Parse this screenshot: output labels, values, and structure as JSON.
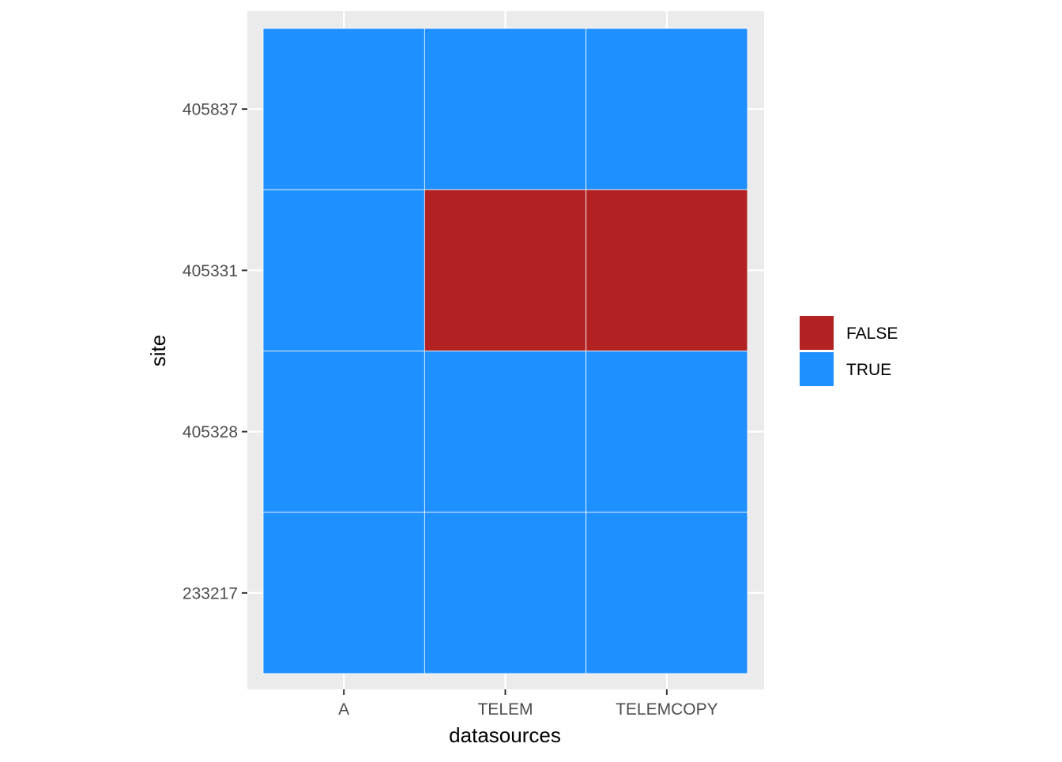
{
  "chart_data": {
    "type": "heatmap",
    "title": "",
    "xlabel": "datasources",
    "ylabel": "site",
    "x_categories": [
      "A",
      "TELEM",
      "TELEMCOPY"
    ],
    "y_categories": [
      "233217",
      "405328",
      "405331",
      "405837"
    ],
    "cells": [
      {
        "x": "A",
        "y": "405837",
        "value": "TRUE"
      },
      {
        "x": "TELEM",
        "y": "405837",
        "value": "TRUE"
      },
      {
        "x": "TELEMCOPY",
        "y": "405837",
        "value": "TRUE"
      },
      {
        "x": "A",
        "y": "405331",
        "value": "TRUE"
      },
      {
        "x": "TELEM",
        "y": "405331",
        "value": "FALSE"
      },
      {
        "x": "TELEMCOPY",
        "y": "405331",
        "value": "FALSE"
      },
      {
        "x": "A",
        "y": "405328",
        "value": "TRUE"
      },
      {
        "x": "TELEM",
        "y": "405328",
        "value": "TRUE"
      },
      {
        "x": "TELEMCOPY",
        "y": "405328",
        "value": "TRUE"
      },
      {
        "x": "A",
        "y": "233217",
        "value": "TRUE"
      },
      {
        "x": "TELEM",
        "y": "233217",
        "value": "TRUE"
      },
      {
        "x": "TELEMCOPY",
        "y": "233217",
        "value": "TRUE"
      }
    ],
    "legend": {
      "position": "right",
      "entries": [
        {
          "label": "FALSE",
          "color": "#b22222"
        },
        {
          "label": "TRUE",
          "color": "#1e90ff"
        }
      ]
    },
    "grid": true,
    "panel_background": "#ebebeb",
    "gridline_color": "#ffffff",
    "tick_color": "#333333"
  }
}
